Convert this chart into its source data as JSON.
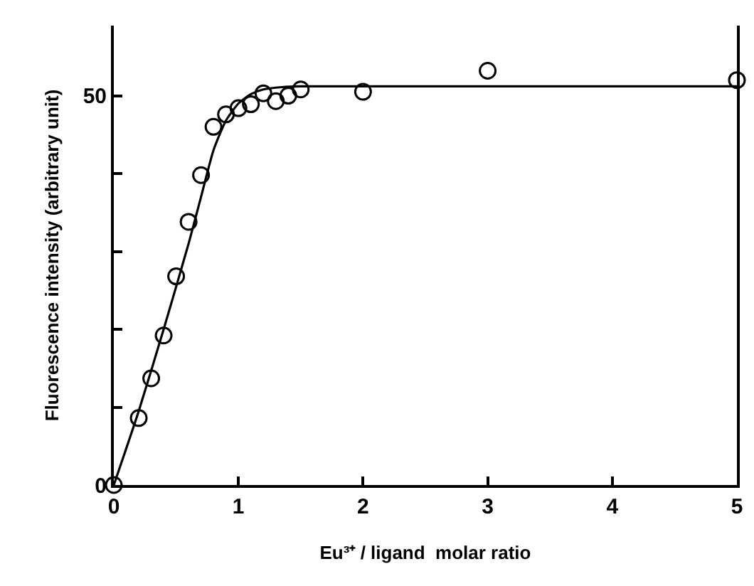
{
  "chart_data": {
    "type": "scatter",
    "xlabel": "Eu³⁺ / ligand  molar ratio",
    "ylabel": "Fluorescence intensity (arbitrary unit)",
    "xlim": [
      0,
      5
    ],
    "ylim": [
      0,
      59
    ],
    "xticks": [
      0,
      1,
      2,
      3,
      4,
      5
    ],
    "yticks": [
      0,
      {
        "value": 10,
        "label": null
      },
      {
        "value": 20,
        "label": null
      },
      {
        "value": 30,
        "label": null
      },
      {
        "value": 40,
        "label": null
      },
      50
    ],
    "series": [
      {
        "marker": "circle",
        "color": "#000000",
        "x": [
          0,
          0.2,
          0.3,
          0.4,
          0.5,
          0.6,
          0.7,
          0.8,
          0.9,
          1.0,
          1.1,
          1.2,
          1.3,
          1.4,
          1.5,
          2,
          3,
          5
        ],
        "values": [
          0,
          8.6,
          13.7,
          19.2,
          26.8,
          33.8,
          39.8,
          46.0,
          47.6,
          48.4,
          48.9,
          50.3,
          49.3,
          50.0,
          50.8,
          50.5,
          53.2,
          52.0
        ]
      },
      {
        "type": "line",
        "marker": "none",
        "line_style": "solid",
        "color": "#000000",
        "x": [
          0,
          0.2,
          0.4,
          0.6,
          0.7,
          0.8,
          0.9,
          1.0,
          1.1,
          1.2,
          1.35,
          1.5,
          5
        ],
        "values": [
          0,
          9.5,
          20,
          31,
          37,
          43,
          46.8,
          49,
          50.2,
          50.8,
          51.1,
          51.2,
          51.2
        ]
      }
    ]
  }
}
